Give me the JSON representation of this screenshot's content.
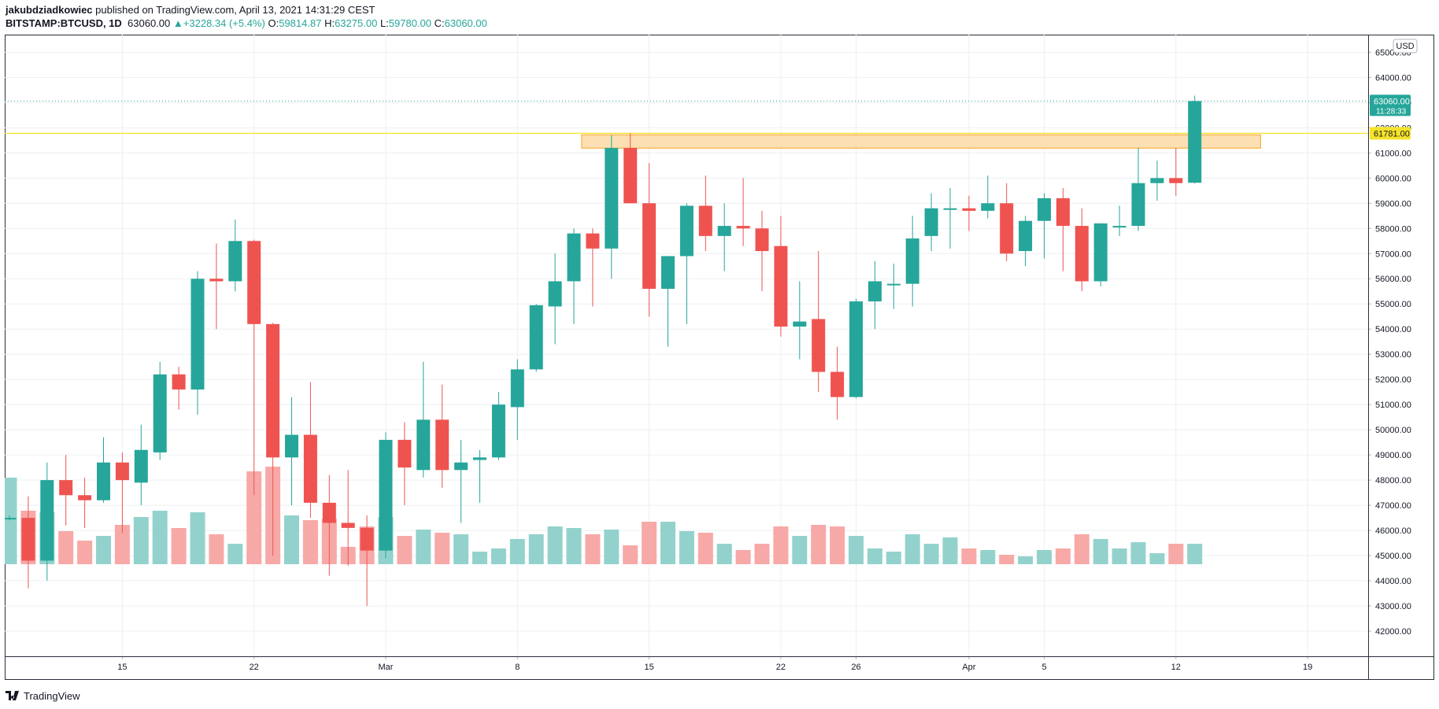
{
  "header": {
    "author": "jakubdziadkowiec",
    "published_text": "published on TradingView.com, April 13, 2021 14:31:29 CEST",
    "symbol": "BITSTAMP:BTCUSD, 1D",
    "last": "63060.00",
    "change": "+3228.34 (+5.4%)",
    "open_label": "O:",
    "open": "59814.87",
    "high_label": "H:",
    "high": "63275.00",
    "low_label": "L:",
    "low": "59780.00",
    "close_label": "C:",
    "close": "63060.00"
  },
  "footer": {
    "brand": "TradingView"
  },
  "colors": {
    "up": "#26a69a",
    "down": "#ef5350",
    "up_volume": "#93d2cc",
    "down_volume": "#f7a9a7",
    "level": "#f5e32a",
    "zone_fill": "#fcd9a4",
    "zone_border": "#f5a623",
    "grid": "#eeeff3",
    "text": "#131722"
  },
  "chart_data": {
    "type": "candlestick",
    "symbol": "BITSTAMP:BTCUSD",
    "timeframe": "1D",
    "currency_label": "USD",
    "ylim": [
      41000,
      65700
    ],
    "y_ticks": [
      42000,
      43000,
      44000,
      45000,
      46000,
      47000,
      48000,
      49000,
      50000,
      51000,
      52000,
      53000,
      54000,
      55000,
      56000,
      57000,
      58000,
      59000,
      60000,
      61000,
      62000,
      63000,
      64000,
      65000
    ],
    "x_ticks": [
      {
        "label": "15",
        "index": 6
      },
      {
        "label": "22",
        "index": 13
      },
      {
        "label": "Mar",
        "index": 20
      },
      {
        "label": "8",
        "index": 27
      },
      {
        "label": "15",
        "index": 34
      },
      {
        "label": "22",
        "index": 41
      },
      {
        "label": "26",
        "index": 45
      },
      {
        "label": "Apr",
        "index": 51
      },
      {
        "label": "5",
        "index": 55
      },
      {
        "label": "12",
        "index": 62
      },
      {
        "label": "19",
        "index": 69
      }
    ],
    "last_price": {
      "value": 63060,
      "label": "63060.00",
      "countdown": "11:28:33"
    },
    "horizontal_level": {
      "value": 61781,
      "label": "61781.00"
    },
    "resistance_zone": {
      "from": 61190,
      "to": 61720,
      "start_index": 31,
      "end_index": 66.5
    },
    "candles": [
      {
        "o": 46500,
        "h": 46600,
        "l": 46400,
        "c": 46500,
        "v": 5.5
      },
      {
        "o": 46500,
        "h": 47350,
        "l": 43700,
        "c": 44800,
        "v": 3.4
      },
      {
        "o": 44800,
        "h": 48700,
        "l": 44000,
        "c": 48000,
        "v": 3.3
      },
      {
        "o": 48000,
        "h": 49000,
        "l": 46200,
        "c": 47400,
        "v": 2.1
      },
      {
        "o": 47400,
        "h": 48100,
        "l": 46100,
        "c": 47200,
        "v": 1.5
      },
      {
        "o": 47200,
        "h": 49700,
        "l": 47100,
        "c": 48700,
        "v": 1.8
      },
      {
        "o": 48700,
        "h": 49100,
        "l": 45900,
        "c": 48000,
        "v": 2.5
      },
      {
        "o": 47900,
        "h": 50200,
        "l": 47000,
        "c": 49200,
        "v": 3.0
      },
      {
        "o": 49100,
        "h": 52700,
        "l": 48800,
        "c": 52200,
        "v": 3.4
      },
      {
        "o": 52200,
        "h": 52500,
        "l": 50800,
        "c": 51600,
        "v": 2.3
      },
      {
        "o": 51600,
        "h": 56300,
        "l": 50600,
        "c": 56000,
        "v": 3.3
      },
      {
        "o": 56000,
        "h": 57400,
        "l": 54000,
        "c": 55900,
        "v": 1.9
      },
      {
        "o": 55900,
        "h": 58350,
        "l": 55500,
        "c": 57500,
        "v": 1.3
      },
      {
        "o": 57500,
        "h": 57550,
        "l": 47400,
        "c": 54200,
        "v": 5.9
      },
      {
        "o": 54200,
        "h": 54250,
        "l": 45000,
        "c": 48900,
        "v": 6.2
      },
      {
        "o": 48900,
        "h": 51300,
        "l": 47000,
        "c": 49800,
        "v": 3.1
      },
      {
        "o": 49800,
        "h": 51900,
        "l": 46500,
        "c": 47100,
        "v": 2.8
      },
      {
        "o": 47100,
        "h": 48200,
        "l": 44200,
        "c": 46300,
        "v": 2.9
      },
      {
        "o": 46300,
        "h": 48400,
        "l": 44600,
        "c": 46100,
        "v": 1.1
      },
      {
        "o": 46100,
        "h": 46600,
        "l": 43000,
        "c": 45200,
        "v": 2.4
      },
      {
        "o": 45200,
        "h": 49900,
        "l": 44900,
        "c": 49600,
        "v": 3.0
      },
      {
        "o": 49600,
        "h": 50300,
        "l": 47000,
        "c": 48500,
        "v": 1.8
      },
      {
        "o": 48400,
        "h": 52700,
        "l": 48100,
        "c": 50400,
        "v": 2.2
      },
      {
        "o": 50400,
        "h": 51800,
        "l": 47700,
        "c": 48400,
        "v": 2.0
      },
      {
        "o": 48400,
        "h": 49600,
        "l": 46300,
        "c": 48700,
        "v": 1.9
      },
      {
        "o": 48800,
        "h": 49200,
        "l": 47100,
        "c": 48900,
        "v": 0.8
      },
      {
        "o": 48900,
        "h": 51500,
        "l": 48800,
        "c": 51000,
        "v": 1.0
      },
      {
        "o": 50900,
        "h": 52800,
        "l": 49600,
        "c": 52400,
        "v": 1.6
      },
      {
        "o": 52400,
        "h": 55000,
        "l": 52300,
        "c": 54950,
        "v": 1.9
      },
      {
        "o": 54900,
        "h": 57000,
        "l": 53400,
        "c": 55900,
        "v": 2.4
      },
      {
        "o": 55900,
        "h": 58000,
        "l": 54200,
        "c": 57800,
        "v": 2.3
      },
      {
        "o": 57800,
        "h": 58000,
        "l": 54900,
        "c": 57200,
        "v": 1.9
      },
      {
        "o": 57200,
        "h": 61700,
        "l": 56000,
        "c": 61200,
        "v": 2.2
      },
      {
        "o": 61200,
        "h": 61780,
        "l": 59000,
        "c": 59000,
        "v": 1.2
      },
      {
        "o": 59000,
        "h": 60600,
        "l": 54500,
        "c": 55600,
        "v": 2.7
      },
      {
        "o": 55600,
        "h": 56800,
        "l": 53300,
        "c": 56900,
        "v": 2.7
      },
      {
        "o": 56900,
        "h": 59000,
        "l": 54200,
        "c": 58900,
        "v": 2.1
      },
      {
        "o": 58900,
        "h": 60100,
        "l": 57100,
        "c": 57700,
        "v": 2.0
      },
      {
        "o": 57700,
        "h": 59000,
        "l": 56300,
        "c": 58100,
        "v": 1.3
      },
      {
        "o": 58100,
        "h": 60000,
        "l": 57300,
        "c": 58000,
        "v": 0.9
      },
      {
        "o": 58000,
        "h": 58700,
        "l": 55500,
        "c": 57100,
        "v": 1.3
      },
      {
        "o": 57300,
        "h": 58500,
        "l": 53700,
        "c": 54100,
        "v": 2.4
      },
      {
        "o": 54100,
        "h": 55900,
        "l": 52800,
        "c": 54300,
        "v": 1.8
      },
      {
        "o": 54400,
        "h": 57100,
        "l": 51500,
        "c": 52300,
        "v": 2.5
      },
      {
        "o": 52300,
        "h": 53300,
        "l": 50400,
        "c": 51300,
        "v": 2.4
      },
      {
        "o": 51300,
        "h": 55200,
        "l": 51250,
        "c": 55100,
        "v": 1.8
      },
      {
        "o": 55100,
        "h": 56700,
        "l": 54000,
        "c": 55900,
        "v": 1.0
      },
      {
        "o": 55800,
        "h": 56600,
        "l": 54800,
        "c": 55800,
        "v": 0.8
      },
      {
        "o": 55800,
        "h": 58500,
        "l": 54900,
        "c": 57600,
        "v": 1.9
      },
      {
        "o": 57700,
        "h": 59400,
        "l": 57100,
        "c": 58800,
        "v": 1.3
      },
      {
        "o": 58800,
        "h": 59600,
        "l": 57200,
        "c": 58800,
        "v": 1.7
      },
      {
        "o": 58800,
        "h": 59300,
        "l": 57900,
        "c": 58700,
        "v": 1.0
      },
      {
        "o": 58700,
        "h": 60100,
        "l": 58400,
        "c": 59000,
        "v": 0.9
      },
      {
        "o": 59000,
        "h": 59800,
        "l": 56700,
        "c": 57000,
        "v": 0.6
      },
      {
        "o": 57100,
        "h": 58500,
        "l": 56500,
        "c": 58300,
        "v": 0.5
      },
      {
        "o": 58300,
        "h": 59400,
        "l": 56800,
        "c": 59200,
        "v": 0.9
      },
      {
        "o": 59200,
        "h": 59600,
        "l": 56300,
        "c": 58100,
        "v": 1.0
      },
      {
        "o": 58100,
        "h": 58800,
        "l": 55500,
        "c": 55900,
        "v": 1.9
      },
      {
        "o": 55900,
        "h": 58200,
        "l": 55700,
        "c": 58200,
        "v": 1.6
      },
      {
        "o": 58100,
        "h": 58900,
        "l": 57700,
        "c": 58100,
        "v": 1.0
      },
      {
        "o": 58100,
        "h": 61200,
        "l": 57900,
        "c": 59800,
        "v": 1.4
      },
      {
        "o": 59800,
        "h": 60700,
        "l": 59100,
        "c": 60000,
        "v": 0.7
      },
      {
        "o": 60000,
        "h": 61200,
        "l": 59300,
        "c": 59800,
        "v": 1.3
      },
      {
        "o": 59815,
        "h": 63275,
        "l": 59780,
        "c": 63060,
        "v": 1.3
      }
    ]
  }
}
